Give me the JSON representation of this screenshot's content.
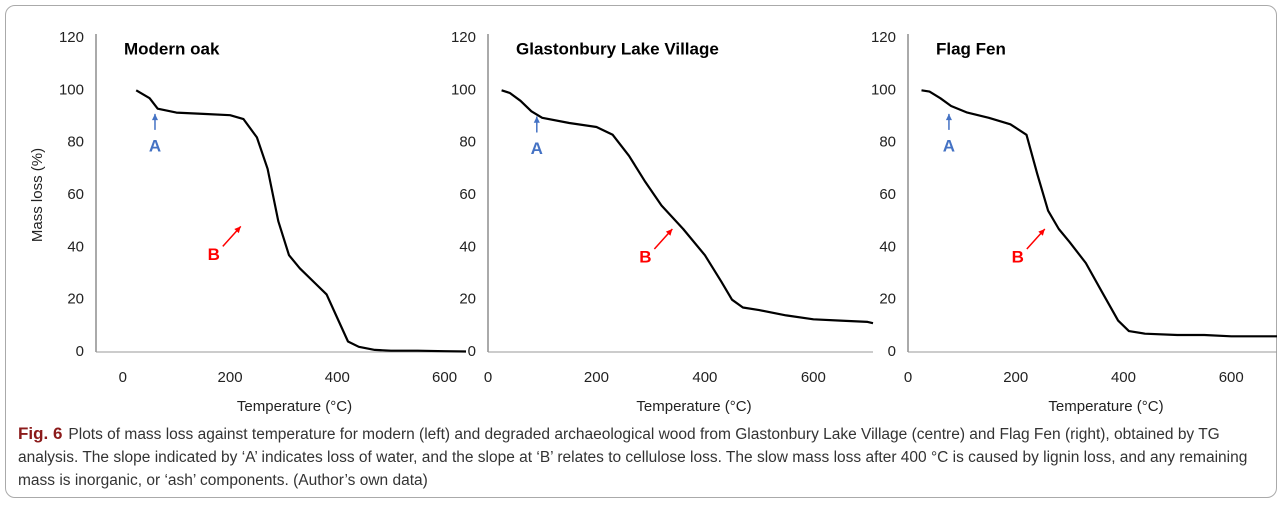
{
  "chart_data": [
    {
      "type": "line",
      "title": "Modern oak",
      "y_label": "Mass loss (%)",
      "x_label": "Temperature (°C)",
      "xlim": [
        -50,
        640
      ],
      "xticks": [
        0,
        200,
        400,
        600
      ],
      "ylim": [
        0,
        120
      ],
      "yticks": [
        0,
        20,
        40,
        60,
        80,
        100,
        120
      ],
      "series": [
        {
          "color": "#000000",
          "x": [
            25,
            50,
            65,
            100,
            150,
            200,
            225,
            250,
            270,
            290,
            310,
            330,
            360,
            380,
            400,
            420,
            440,
            470,
            500,
            550,
            600,
            640
          ],
          "values": [
            100,
            97,
            93,
            91.5,
            91,
            90.5,
            89,
            82,
            70,
            50,
            37,
            32,
            26,
            22,
            13,
            4,
            2,
            0.8,
            0.5,
            0.5,
            0.3,
            0.2
          ]
        }
      ],
      "annotations": [
        {
          "text": "A",
          "color": "#4472c4",
          "x": 60,
          "y": 91
        },
        {
          "text": "B",
          "color": "#ff0000",
          "x": 220,
          "y": 48
        }
      ]
    },
    {
      "type": "line",
      "title": "Glastonbury Lake Village",
      "x_label": "Temperature (°C)",
      "xlim": [
        0,
        710
      ],
      "xticks": [
        0,
        200,
        400,
        600
      ],
      "ylim": [
        0,
        120
      ],
      "yticks": [
        0,
        20,
        40,
        60,
        80,
        100,
        120
      ],
      "series": [
        {
          "color": "#000000",
          "x": [
            25,
            40,
            60,
            80,
            100,
            150,
            200,
            230,
            260,
            290,
            320,
            360,
            400,
            430,
            450,
            470,
            500,
            550,
            600,
            650,
            700,
            710
          ],
          "values": [
            100,
            99,
            96,
            92,
            89.5,
            87.5,
            86,
            83,
            75,
            65,
            56,
            47,
            37,
            27,
            20,
            17,
            16,
            14,
            12.5,
            12,
            11.5,
            11
          ]
        }
      ],
      "annotations": [
        {
          "text": "A",
          "color": "#4472c4",
          "x": 90,
          "y": 90
        },
        {
          "text": "B",
          "color": "#ff0000",
          "x": 340,
          "y": 47
        }
      ]
    },
    {
      "type": "line",
      "title": "Flag Fen",
      "x_label": "Temperature (°C)",
      "xlim": [
        0,
        685
      ],
      "xticks": [
        0,
        200,
        400,
        600
      ],
      "ylim": [
        0,
        120
      ],
      "yticks": [
        0,
        20,
        40,
        60,
        80,
        100,
        120
      ],
      "series": [
        {
          "color": "#000000",
          "x": [
            25,
            40,
            60,
            80,
            110,
            150,
            190,
            220,
            240,
            260,
            280,
            300,
            330,
            360,
            390,
            410,
            440,
            500,
            550,
            600,
            685
          ],
          "values": [
            100,
            99.5,
            97,
            94,
            91.5,
            89.5,
            87,
            83,
            68,
            54,
            47,
            42,
            34,
            23,
            12,
            8,
            7,
            6.5,
            6.5,
            6,
            6
          ]
        }
      ],
      "annotations": [
        {
          "text": "A",
          "color": "#4472c4",
          "x": 76,
          "y": 91
        },
        {
          "text": "B",
          "color": "#ff0000",
          "x": 254,
          "y": 47
        }
      ]
    }
  ],
  "caption": {
    "label": "Fig. 6",
    "text": "Plots of mass loss against temperature for modern (left) and degraded archaeological wood from Glastonbury Lake Village (centre) and Flag Fen (right), obtained by TG analysis. The slope indicated by ‘A’ indicates loss of water, and the slope at ‘B’ relates to cellulose loss. The slow mass loss after 400 °C is caused by lignin loss, and any remaining mass is inorganic, or ‘ash’ components. (Author’s own data)"
  }
}
